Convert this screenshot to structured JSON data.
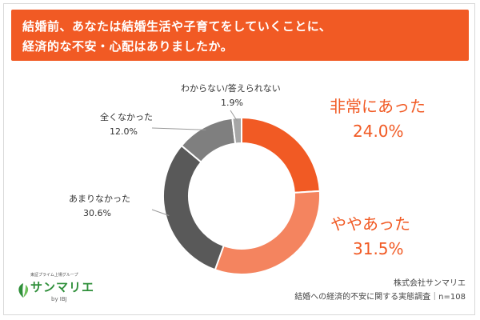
{
  "header": {
    "line1": "結婚前、あなたは結婚生活や子育てをしていくことに、",
    "line2": "経済的な不安・心配はありましたか。"
  },
  "chart_data": {
    "type": "pie",
    "donut": true,
    "start": "top",
    "direction": "clockwise",
    "slices": [
      {
        "label": "非常にあった",
        "value": 24.0,
        "display": "24.0%",
        "color": "#f15a24"
      },
      {
        "label": "ややあった",
        "value": 31.5,
        "display": "31.5%",
        "color": "#f4845f"
      },
      {
        "label": "あまりなかった",
        "value": 30.6,
        "display": "30.6%",
        "color": "#595959"
      },
      {
        "label": "全くなかった",
        "value": 12.0,
        "display": "12.0%",
        "color": "#7f7f7f"
      },
      {
        "label": "わからない/答えられない",
        "value": 1.9,
        "display": "1.9%",
        "color": "#a6a6a6"
      }
    ]
  },
  "footer": {
    "company": "株式会社サンマリエ",
    "survey": "結婚への経済的不安に関する実態調査｜n=108"
  },
  "logo": {
    "tagline": "東証プライム上場グループ",
    "name": "サンマリエ",
    "by": "by IBJ",
    "color": "#2f8f3a"
  }
}
